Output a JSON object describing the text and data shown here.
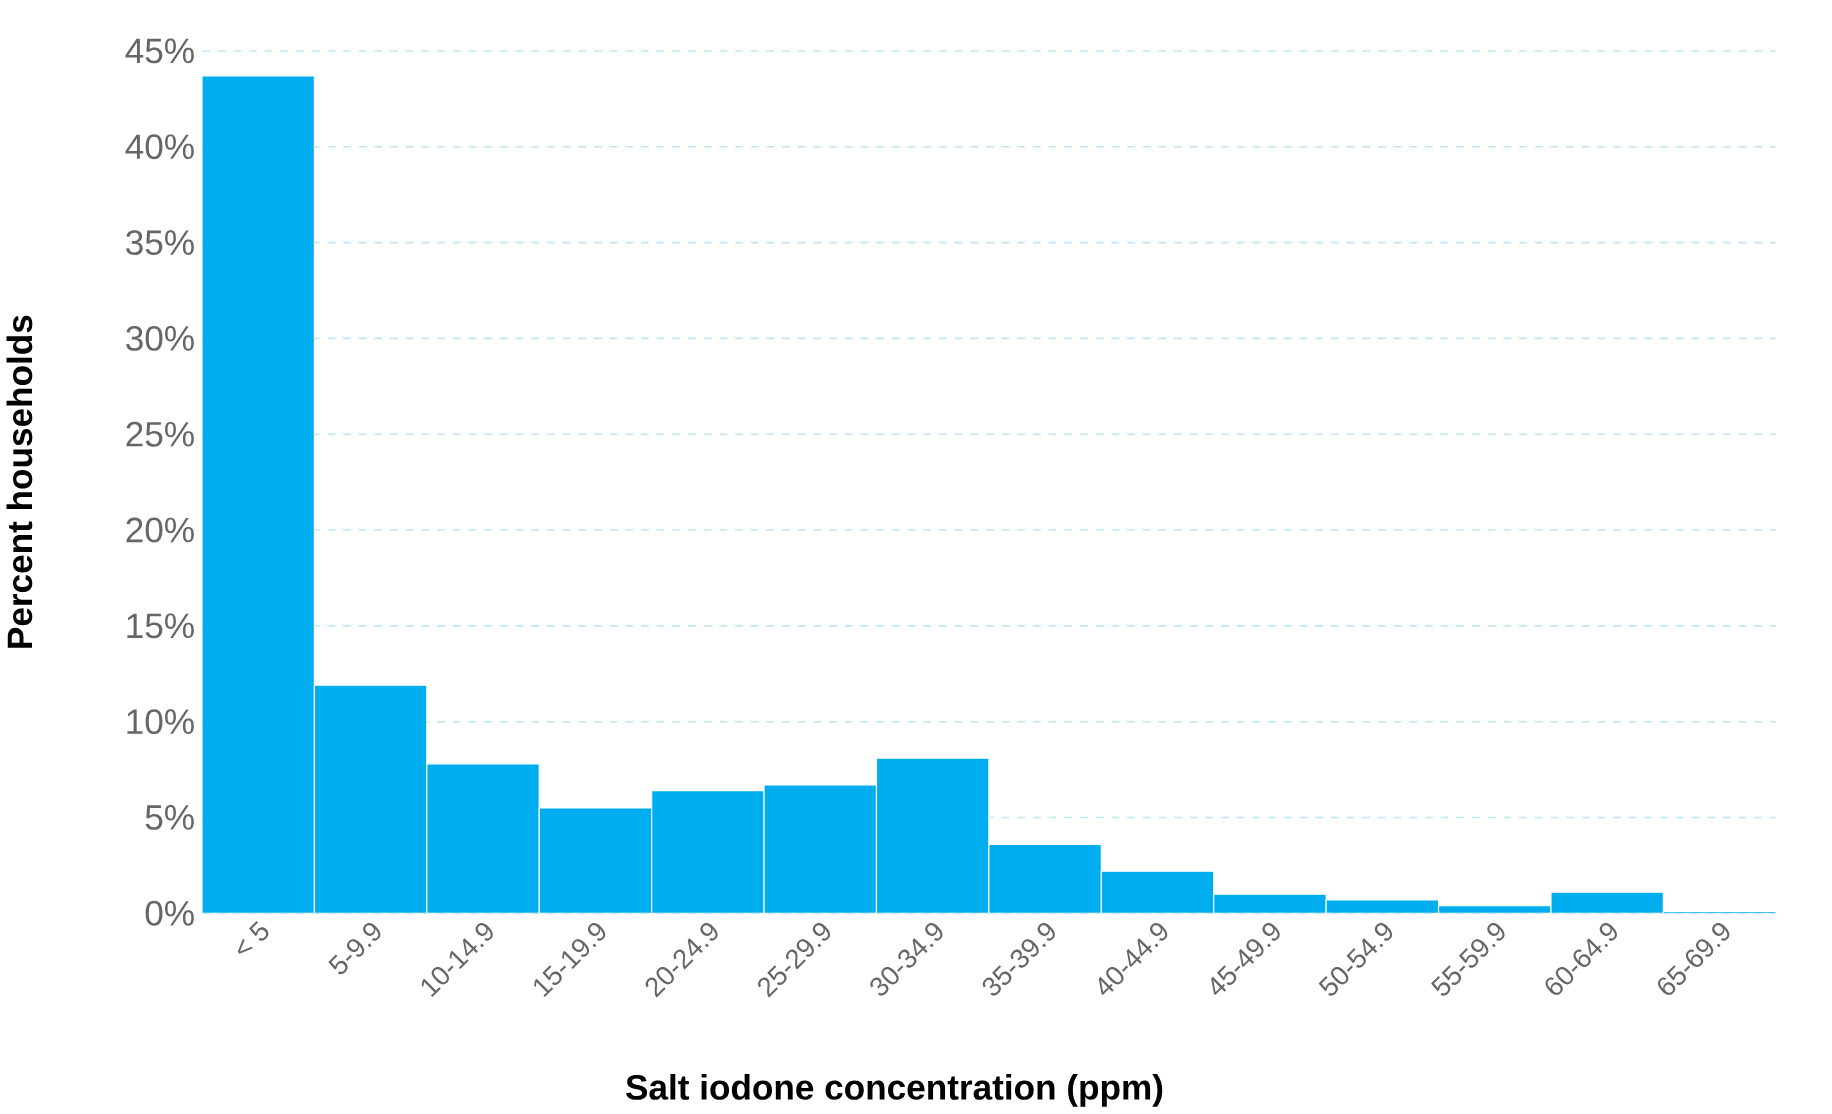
{
  "chart_data": {
    "type": "bar",
    "xlabel": "Salt iodone concentration (ppm)",
    "ylabel": "Percent households",
    "categories": [
      "< 5",
      "5-9.9",
      "10-14.9",
      "15-19.9",
      "20-24.9",
      "25-29.9",
      "30-34.9",
      "35-39.9",
      "40-44.9",
      "45-49.9",
      "50-54.9",
      "55-59.9",
      "60-64.9",
      "65-69.9"
    ],
    "values": [
      43.7,
      11.9,
      7.8,
      5.5,
      6.4,
      6.7,
      8.1,
      3.6,
      2.2,
      1.0,
      0.7,
      0.4,
      1.1,
      0.1
    ],
    "color": "#00aeef",
    "ylim": [
      0,
      45
    ],
    "yticks": [
      {
        "value": 0,
        "label": "0%"
      },
      {
        "value": 5,
        "label": "5%"
      },
      {
        "value": 10,
        "label": "10%"
      },
      {
        "value": 15,
        "label": "15%"
      },
      {
        "value": 20,
        "label": "20%"
      },
      {
        "value": 25,
        "label": "25%"
      },
      {
        "value": 30,
        "label": "30%"
      },
      {
        "value": 35,
        "label": "35%"
      },
      {
        "value": 40,
        "label": "40%"
      },
      {
        "value": 45,
        "label": "45%"
      }
    ],
    "grid": "y"
  }
}
